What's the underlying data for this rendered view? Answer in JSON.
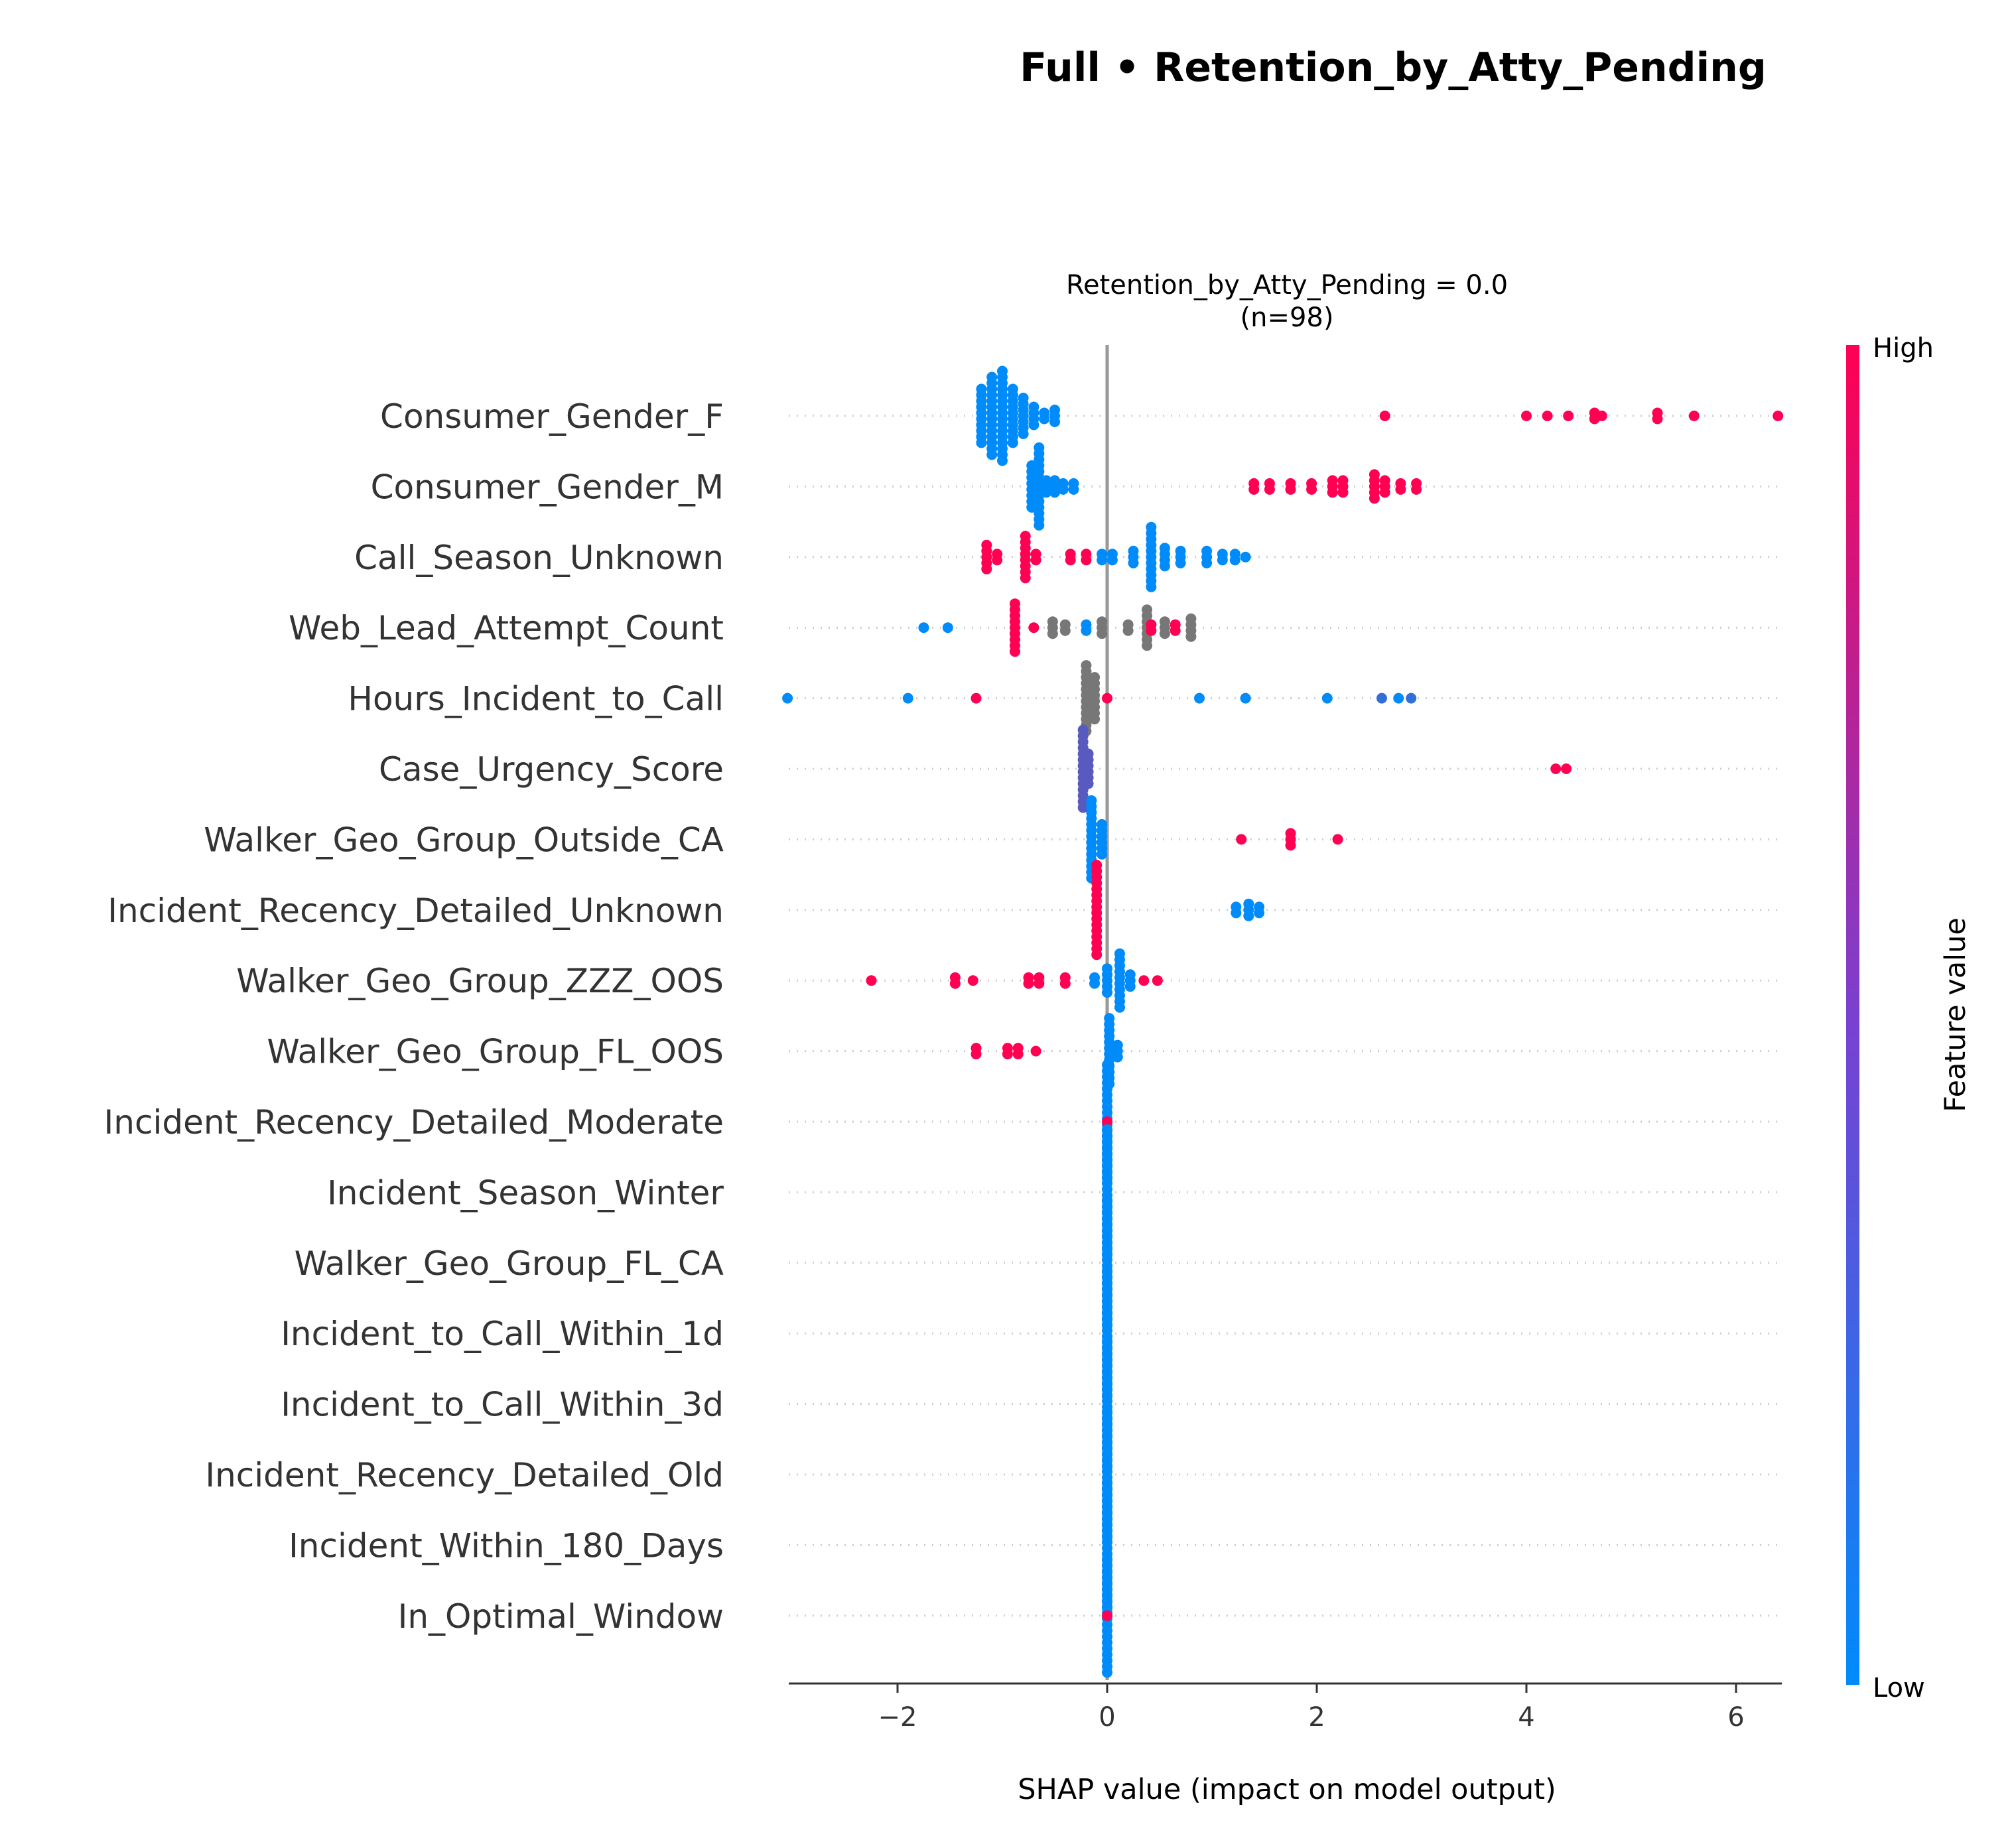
{
  "figure_title": "Full • Retention_by_Atty_Pending",
  "chart_data": {
    "type": "scatter",
    "subtype": "shap-beeswarm",
    "title": "Retention_by_Atty_Pending = 0.0",
    "subtitle": "(n=98)",
    "xlabel": "SHAP value (impact on model output)",
    "ylabel": "",
    "xlim": [
      -3.05,
      6.45
    ],
    "xticks": [
      -2,
      0,
      2,
      4,
      6
    ],
    "xtick_labels": [
      "−2",
      "0",
      "2",
      "4",
      "6"
    ],
    "zero_line": 0,
    "grid": "dotted row guides",
    "colorbar": {
      "title": "Feature value",
      "high_label": "High",
      "low_label": "Low",
      "low_color": "#008bfb",
      "high_color": "#ff0052",
      "placement": "right"
    },
    "nan_color": "#777777",
    "features": [
      {
        "name": "Consumer_Gender_F",
        "points": [
          {
            "v": -1.2,
            "n": 10,
            "c": 0
          },
          {
            "v": -1.1,
            "n": 14,
            "c": 0
          },
          {
            "v": -1.0,
            "n": 16,
            "c": 0
          },
          {
            "v": -0.9,
            "n": 10,
            "c": 0
          },
          {
            "v": -0.8,
            "n": 7,
            "c": 0
          },
          {
            "v": -0.7,
            "n": 4,
            "c": 0
          },
          {
            "v": -0.6,
            "n": 2,
            "c": 0
          },
          {
            "v": -0.5,
            "n": 3,
            "c": 0
          },
          {
            "v": 2.65,
            "n": 1,
            "c": 1
          },
          {
            "v": 4.0,
            "n": 1,
            "c": 1
          },
          {
            "v": 4.2,
            "n": 1,
            "c": 1
          },
          {
            "v": 4.4,
            "n": 1,
            "c": 1
          },
          {
            "v": 4.65,
            "n": 2,
            "c": 1
          },
          {
            "v": 4.72,
            "n": 1,
            "c": 1
          },
          {
            "v": 5.25,
            "n": 2,
            "c": 1
          },
          {
            "v": 5.6,
            "n": 1,
            "c": 1
          },
          {
            "v": 6.4,
            "n": 1,
            "c": 1
          }
        ]
      },
      {
        "name": "Consumer_Gender_M",
        "points": [
          {
            "v": -0.72,
            "n": 8,
            "c": 0
          },
          {
            "v": -0.65,
            "n": 14,
            "c": 0
          },
          {
            "v": -0.58,
            "n": 3,
            "c": 0
          },
          {
            "v": -0.5,
            "n": 3,
            "c": 0
          },
          {
            "v": -0.42,
            "n": 2,
            "c": 0
          },
          {
            "v": -0.32,
            "n": 2,
            "c": 0
          },
          {
            "v": 1.4,
            "n": 2,
            "c": 1
          },
          {
            "v": 1.55,
            "n": 2,
            "c": 1
          },
          {
            "v": 1.75,
            "n": 2,
            "c": 1
          },
          {
            "v": 1.95,
            "n": 2,
            "c": 1
          },
          {
            "v": 2.15,
            "n": 3,
            "c": 1
          },
          {
            "v": 2.25,
            "n": 3,
            "c": 1
          },
          {
            "v": 2.55,
            "n": 5,
            "c": 1
          },
          {
            "v": 2.65,
            "n": 3,
            "c": 1
          },
          {
            "v": 2.8,
            "n": 2,
            "c": 1
          },
          {
            "v": 2.95,
            "n": 2,
            "c": 1
          }
        ]
      },
      {
        "name": "Call_Season_Unknown",
        "points": [
          {
            "v": -1.15,
            "n": 5,
            "c": 1
          },
          {
            "v": -1.05,
            "n": 2,
            "c": 1
          },
          {
            "v": -0.78,
            "n": 8,
            "c": 1
          },
          {
            "v": -0.68,
            "n": 2,
            "c": 1
          },
          {
            "v": -0.35,
            "n": 2,
            "c": 1
          },
          {
            "v": -0.2,
            "n": 2,
            "c": 1
          },
          {
            "v": -0.05,
            "n": 2,
            "c": 0
          },
          {
            "v": 0.05,
            "n": 2,
            "c": 0
          },
          {
            "v": 0.25,
            "n": 3,
            "c": 0
          },
          {
            "v": 0.42,
            "n": 11,
            "c": 0
          },
          {
            "v": 0.55,
            "n": 4,
            "c": 0
          },
          {
            "v": 0.7,
            "n": 3,
            "c": 0
          },
          {
            "v": 0.95,
            "n": 3,
            "c": 0
          },
          {
            "v": 1.1,
            "n": 2,
            "c": 0
          },
          {
            "v": 1.22,
            "n": 2,
            "c": 0
          },
          {
            "v": 1.32,
            "n": 1,
            "c": 0
          }
        ]
      },
      {
        "name": "Web_Lead_Attempt_Count",
        "points": [
          {
            "v": -1.75,
            "n": 1,
            "c": 0
          },
          {
            "v": -1.52,
            "n": 1,
            "c": 0
          },
          {
            "v": -0.88,
            "n": 9,
            "c": 1
          },
          {
            "v": -0.7,
            "n": 1,
            "c": 1
          },
          {
            "v": -0.52,
            "n": 3,
            "c": null
          },
          {
            "v": -0.4,
            "n": 2,
            "c": null
          },
          {
            "v": -0.2,
            "n": 2,
            "c": 0
          },
          {
            "v": -0.05,
            "n": 3,
            "c": null
          },
          {
            "v": 0.2,
            "n": 2,
            "c": null
          },
          {
            "v": 0.38,
            "n": 7,
            "c": null
          },
          {
            "v": 0.42,
            "n": 2,
            "c": 1
          },
          {
            "v": 0.55,
            "n": 3,
            "c": null
          },
          {
            "v": 0.65,
            "n": 2,
            "c": 1
          },
          {
            "v": 0.8,
            "n": 4,
            "c": null
          }
        ]
      },
      {
        "name": "Hours_Incident_to_Call",
        "points": [
          {
            "v": -3.05,
            "n": 1,
            "c": 0
          },
          {
            "v": -1.9,
            "n": 1,
            "c": 0
          },
          {
            "v": -1.25,
            "n": 1,
            "c": 1
          },
          {
            "v": -0.2,
            "n": 12,
            "c": null
          },
          {
            "v": -0.12,
            "n": 8,
            "c": null
          },
          {
            "v": 0.0,
            "n": 1,
            "c": 1
          },
          {
            "v": 0.88,
            "n": 1,
            "c": 0
          },
          {
            "v": 1.32,
            "n": 1,
            "c": 0
          },
          {
            "v": 2.1,
            "n": 1,
            "c": 0
          },
          {
            "v": 2.62,
            "n": 1,
            "c": 0.2
          },
          {
            "v": 2.78,
            "n": 1,
            "c": 0
          },
          {
            "v": 2.9,
            "n": 1,
            "c": 0.2
          }
        ]
      },
      {
        "name": "Case_Urgency_Score",
        "points": [
          {
            "v": -0.23,
            "n": 14,
            "c": 0.35
          },
          {
            "v": -0.18,
            "n": 6,
            "c": 0.35
          },
          {
            "v": 4.28,
            "n": 1,
            "c": 1
          },
          {
            "v": 4.38,
            "n": 1,
            "c": 1
          }
        ]
      },
      {
        "name": "Walker_Geo_Group_Outside_CA",
        "points": [
          {
            "v": -0.15,
            "n": 14,
            "c": 0
          },
          {
            "v": -0.05,
            "n": 6,
            "c": 0
          },
          {
            "v": 1.28,
            "n": 1,
            "c": 1
          },
          {
            "v": 1.75,
            "n": 3,
            "c": 1
          },
          {
            "v": 2.2,
            "n": 1,
            "c": 1
          }
        ]
      },
      {
        "name": "Incident_Recency_Detailed_Unknown",
        "points": [
          {
            "v": -0.1,
            "n": 16,
            "c": 1
          },
          {
            "v": 1.23,
            "n": 2,
            "c": 0
          },
          {
            "v": 1.35,
            "n": 3,
            "c": 0
          },
          {
            "v": 1.45,
            "n": 2,
            "c": 0
          }
        ]
      },
      {
        "name": "Walker_Geo_Group_ZZZ_OOS",
        "points": [
          {
            "v": -2.25,
            "n": 1,
            "c": 1
          },
          {
            "v": -1.45,
            "n": 2,
            "c": 1
          },
          {
            "v": -1.28,
            "n": 1,
            "c": 1
          },
          {
            "v": -0.75,
            "n": 2,
            "c": 1
          },
          {
            "v": -0.65,
            "n": 2,
            "c": 1
          },
          {
            "v": -0.4,
            "n": 2,
            "c": 1
          },
          {
            "v": -0.12,
            "n": 2,
            "c": 0
          },
          {
            "v": 0.0,
            "n": 5,
            "c": 0
          },
          {
            "v": 0.12,
            "n": 10,
            "c": 0
          },
          {
            "v": 0.22,
            "n": 3,
            "c": 0
          },
          {
            "v": 0.35,
            "n": 1,
            "c": 1
          },
          {
            "v": 0.48,
            "n": 1,
            "c": 1
          }
        ]
      },
      {
        "name": "Walker_Geo_Group_FL_OOS",
        "points": [
          {
            "v": -1.25,
            "n": 2,
            "c": 1
          },
          {
            "v": -0.95,
            "n": 2,
            "c": 1
          },
          {
            "v": -0.85,
            "n": 2,
            "c": 1
          },
          {
            "v": -0.68,
            "n": 1,
            "c": 1
          },
          {
            "v": 0.02,
            "n": 12,
            "c": 0
          },
          {
            "v": 0.1,
            "n": 3,
            "c": 0
          }
        ]
      },
      {
        "name": "Incident_Recency_Detailed_Moderate",
        "points": [
          {
            "v": 0.0,
            "n": 20,
            "c": 0
          },
          {
            "v": 0.0,
            "n": 1,
            "c": 1
          }
        ]
      },
      {
        "name": "Incident_Season_Winter",
        "points": [
          {
            "v": 0.0,
            "n": 22,
            "c": 0
          }
        ]
      },
      {
        "name": "Walker_Geo_Group_FL_CA",
        "points": [
          {
            "v": 0.0,
            "n": 22,
            "c": 0
          }
        ]
      },
      {
        "name": "Incident_to_Call_Within_1d",
        "points": [
          {
            "v": 0.0,
            "n": 22,
            "c": 0
          }
        ]
      },
      {
        "name": "Incident_to_Call_Within_3d",
        "points": [
          {
            "v": 0.0,
            "n": 22,
            "c": 0
          }
        ]
      },
      {
        "name": "Incident_Recency_Detailed_Old",
        "points": [
          {
            "v": 0.0,
            "n": 22,
            "c": 0
          }
        ]
      },
      {
        "name": "Incident_Within_180_Days",
        "points": [
          {
            "v": 0.0,
            "n": 22,
            "c": 0
          }
        ]
      },
      {
        "name": "In_Optimal_Window",
        "points": [
          {
            "v": 0.0,
            "n": 20,
            "c": 0
          },
          {
            "v": 0.0,
            "n": 1,
            "c": 1
          }
        ]
      }
    ]
  }
}
